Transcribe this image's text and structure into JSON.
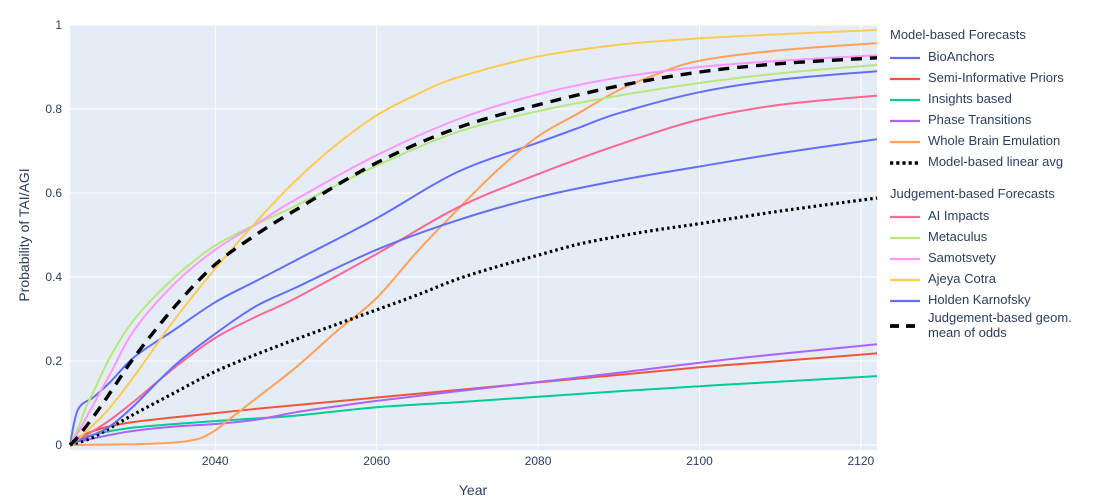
{
  "chart_data": {
    "type": "line",
    "title": "",
    "xlabel": "Year",
    "ylabel": "Probability of TAI/AGI",
    "x_range": [
      2022,
      2122
    ],
    "y_range": [
      0,
      1
    ],
    "x_ticks": [
      2040,
      2060,
      2080,
      2100,
      2120
    ],
    "x_tick_labels": [
      "2040",
      "2060",
      "2080",
      "2100",
      "2120"
    ],
    "y_ticks": [
      0,
      0.2,
      0.4,
      0.6,
      0.8,
      1
    ],
    "y_tick_labels": [
      "0",
      "0.2",
      "0.4",
      "0.6",
      "0.8",
      "1"
    ],
    "grid": true,
    "legend_position": "right",
    "colors": {
      "plot_background": "#E5ECF6",
      "grid": "#FFFFFF",
      "text": "#2a3f5f",
      "black_average_lines": "#000000"
    },
    "series": [
      {
        "name": "BioAnchors",
        "group": "Model-based Forecasts",
        "color": "#636EFA",
        "dash": "solid",
        "points": [
          [
            2022,
            0
          ],
          [
            2023,
            0.085
          ],
          [
            2025,
            0.115
          ],
          [
            2027,
            0.15
          ],
          [
            2030,
            0.21
          ],
          [
            2035,
            0.275
          ],
          [
            2040,
            0.34
          ],
          [
            2045,
            0.39
          ],
          [
            2050,
            0.44
          ],
          [
            2060,
            0.54
          ],
          [
            2070,
            0.65
          ],
          [
            2080,
            0.72
          ],
          [
            2085,
            0.755
          ],
          [
            2090,
            0.79
          ],
          [
            2100,
            0.84
          ],
          [
            2110,
            0.87
          ],
          [
            2122,
            0.89
          ]
        ]
      },
      {
        "name": "Semi-Informative Priors",
        "group": "Model-based Forecasts",
        "color": "#EF553B",
        "dash": "solid",
        "points": [
          [
            2022,
            0
          ],
          [
            2023,
            0.018
          ],
          [
            2025,
            0.034
          ],
          [
            2027,
            0.045
          ],
          [
            2030,
            0.055
          ],
          [
            2035,
            0.066
          ],
          [
            2040,
            0.076
          ],
          [
            2045,
            0.086
          ],
          [
            2050,
            0.095
          ],
          [
            2060,
            0.113
          ],
          [
            2070,
            0.131
          ],
          [
            2080,
            0.149
          ],
          [
            2090,
            0.167
          ],
          [
            2100,
            0.185
          ],
          [
            2110,
            0.2
          ],
          [
            2122,
            0.218
          ]
        ]
      },
      {
        "name": "Insights based",
        "group": "Model-based Forecasts",
        "color": "#00CC96",
        "dash": "solid",
        "points": [
          [
            2022,
            0
          ],
          [
            2023,
            0.012
          ],
          [
            2025,
            0.025
          ],
          [
            2027,
            0.033
          ],
          [
            2030,
            0.042
          ],
          [
            2035,
            0.05
          ],
          [
            2040,
            0.057
          ],
          [
            2045,
            0.063
          ],
          [
            2050,
            0.07
          ],
          [
            2060,
            0.09
          ],
          [
            2070,
            0.102
          ],
          [
            2080,
            0.115
          ],
          [
            2090,
            0.128
          ],
          [
            2100,
            0.14
          ],
          [
            2110,
            0.151
          ],
          [
            2122,
            0.164
          ]
        ]
      },
      {
        "name": "Phase Transitions",
        "group": "Model-based Forecasts",
        "color": "#AB63FA",
        "dash": "solid",
        "points": [
          [
            2022,
            0
          ],
          [
            2023,
            0.008
          ],
          [
            2025,
            0.016
          ],
          [
            2027,
            0.024
          ],
          [
            2030,
            0.034
          ],
          [
            2035,
            0.044
          ],
          [
            2040,
            0.05
          ],
          [
            2045,
            0.06
          ],
          [
            2050,
            0.078
          ],
          [
            2055,
            0.092
          ],
          [
            2060,
            0.105
          ],
          [
            2070,
            0.128
          ],
          [
            2080,
            0.15
          ],
          [
            2090,
            0.172
          ],
          [
            2100,
            0.196
          ],
          [
            2110,
            0.217
          ],
          [
            2122,
            0.24
          ]
        ]
      },
      {
        "name": "Whole Brain Emulation",
        "group": "Model-based Forecasts",
        "color": "#FFA15A",
        "dash": "solid",
        "points": [
          [
            2022,
            0
          ],
          [
            2030,
            0.002
          ],
          [
            2035,
            0.006
          ],
          [
            2038,
            0.015
          ],
          [
            2040,
            0.035
          ],
          [
            2042,
            0.065
          ],
          [
            2045,
            0.11
          ],
          [
            2050,
            0.185
          ],
          [
            2055,
            0.27
          ],
          [
            2060,
            0.35
          ],
          [
            2065,
            0.46
          ],
          [
            2070,
            0.56
          ],
          [
            2075,
            0.655
          ],
          [
            2080,
            0.735
          ],
          [
            2085,
            0.79
          ],
          [
            2090,
            0.845
          ],
          [
            2095,
            0.885
          ],
          [
            2100,
            0.915
          ],
          [
            2110,
            0.94
          ],
          [
            2122,
            0.957
          ]
        ]
      },
      {
        "name": "Model-based linear avg",
        "group": "Model-based Forecasts",
        "color": "#000000",
        "dash": "dot",
        "points": [
          [
            2022,
            0
          ],
          [
            2025,
            0.02
          ],
          [
            2030,
            0.074
          ],
          [
            2035,
            0.125
          ],
          [
            2040,
            0.175
          ],
          [
            2045,
            0.215
          ],
          [
            2050,
            0.252
          ],
          [
            2055,
            0.287
          ],
          [
            2060,
            0.322
          ],
          [
            2065,
            0.357
          ],
          [
            2070,
            0.395
          ],
          [
            2075,
            0.425
          ],
          [
            2080,
            0.452
          ],
          [
            2085,
            0.478
          ],
          [
            2090,
            0.497
          ],
          [
            2095,
            0.513
          ],
          [
            2100,
            0.527
          ],
          [
            2110,
            0.557
          ],
          [
            2122,
            0.588
          ]
        ]
      },
      {
        "name": "AI Impacts",
        "group": "Judgement-based Forecasts",
        "color": "#FF6692",
        "dash": "solid",
        "points": [
          [
            2022,
            0
          ],
          [
            2023,
            0.012
          ],
          [
            2025,
            0.035
          ],
          [
            2027,
            0.06
          ],
          [
            2030,
            0.105
          ],
          [
            2035,
            0.185
          ],
          [
            2040,
            0.255
          ],
          [
            2045,
            0.305
          ],
          [
            2050,
            0.35
          ],
          [
            2060,
            0.455
          ],
          [
            2070,
            0.565
          ],
          [
            2080,
            0.645
          ],
          [
            2090,
            0.715
          ],
          [
            2100,
            0.775
          ],
          [
            2110,
            0.81
          ],
          [
            2122,
            0.832
          ]
        ]
      },
      {
        "name": "Metaculus",
        "group": "Judgement-based Forecasts",
        "color": "#B6E880",
        "dash": "solid",
        "points": [
          [
            2022,
            0
          ],
          [
            2023,
            0.04
          ],
          [
            2024,
            0.09
          ],
          [
            2025,
            0.13
          ],
          [
            2027,
            0.21
          ],
          [
            2030,
            0.3
          ],
          [
            2035,
            0.4
          ],
          [
            2040,
            0.475
          ],
          [
            2045,
            0.525
          ],
          [
            2050,
            0.57
          ],
          [
            2060,
            0.665
          ],
          [
            2070,
            0.745
          ],
          [
            2080,
            0.795
          ],
          [
            2090,
            0.832
          ],
          [
            2100,
            0.862
          ],
          [
            2110,
            0.885
          ],
          [
            2122,
            0.905
          ]
        ]
      },
      {
        "name": "Samotsvety",
        "group": "Judgement-based Forecasts",
        "color": "#FF97FF",
        "dash": "solid",
        "points": [
          [
            2022,
            0
          ],
          [
            2023,
            0.03
          ],
          [
            2025,
            0.1
          ],
          [
            2027,
            0.17
          ],
          [
            2030,
            0.275
          ],
          [
            2035,
            0.385
          ],
          [
            2040,
            0.465
          ],
          [
            2045,
            0.525
          ],
          [
            2050,
            0.585
          ],
          [
            2060,
            0.69
          ],
          [
            2070,
            0.775
          ],
          [
            2080,
            0.835
          ],
          [
            2090,
            0.875
          ],
          [
            2100,
            0.9
          ],
          [
            2110,
            0.915
          ],
          [
            2122,
            0.928
          ]
        ]
      },
      {
        "name": "Ajeya Cotra",
        "group": "Judgement-based Forecasts",
        "color": "#FECB52",
        "dash": "solid",
        "points": [
          [
            2022,
            0
          ],
          [
            2023,
            0.015
          ],
          [
            2025,
            0.05
          ],
          [
            2027,
            0.09
          ],
          [
            2030,
            0.165
          ],
          [
            2035,
            0.3
          ],
          [
            2040,
            0.42
          ],
          [
            2045,
            0.53
          ],
          [
            2050,
            0.63
          ],
          [
            2055,
            0.715
          ],
          [
            2060,
            0.785
          ],
          [
            2065,
            0.835
          ],
          [
            2070,
            0.875
          ],
          [
            2080,
            0.925
          ],
          [
            2090,
            0.953
          ],
          [
            2100,
            0.968
          ],
          [
            2110,
            0.978
          ],
          [
            2122,
            0.988
          ]
        ]
      },
      {
        "name": "Holden Karnofsky",
        "group": "Judgement-based Forecasts",
        "color": "#636EFA",
        "dash": "solid",
        "points": [
          [
            2022,
            0
          ],
          [
            2023,
            0.01
          ],
          [
            2025,
            0.025
          ],
          [
            2027,
            0.045
          ],
          [
            2030,
            0.095
          ],
          [
            2035,
            0.19
          ],
          [
            2040,
            0.265
          ],
          [
            2045,
            0.33
          ],
          [
            2050,
            0.375
          ],
          [
            2060,
            0.465
          ],
          [
            2070,
            0.535
          ],
          [
            2080,
            0.59
          ],
          [
            2090,
            0.63
          ],
          [
            2100,
            0.663
          ],
          [
            2110,
            0.695
          ],
          [
            2122,
            0.728
          ]
        ]
      },
      {
        "name": "Judgement-based geom. mean of odds",
        "group": "Judgement-based Forecasts",
        "color": "#000000",
        "dash": "dash",
        "points": [
          [
            2022,
            0
          ],
          [
            2023,
            0.02
          ],
          [
            2025,
            0.07
          ],
          [
            2027,
            0.125
          ],
          [
            2030,
            0.21
          ],
          [
            2035,
            0.33
          ],
          [
            2040,
            0.43
          ],
          [
            2045,
            0.5
          ],
          [
            2050,
            0.56
          ],
          [
            2060,
            0.672
          ],
          [
            2070,
            0.755
          ],
          [
            2080,
            0.81
          ],
          [
            2090,
            0.855
          ],
          [
            2100,
            0.888
          ],
          [
            2110,
            0.908
          ],
          [
            2122,
            0.922
          ]
        ]
      }
    ]
  },
  "legend": {
    "groups": [
      {
        "title": "Model-based Forecasts",
        "items": [
          "BioAnchors",
          "Semi-Informative Priors",
          "Insights based",
          "Phase Transitions",
          "Whole Brain Emulation",
          "Model-based linear avg"
        ]
      },
      {
        "title": "Judgement-based Forecasts",
        "items": [
          "AI Impacts",
          "Metaculus",
          "Samotsvety",
          "Ajeya Cotra",
          "Holden Karnofsky",
          "Judgement-based geom. mean of odds"
        ]
      }
    ]
  }
}
